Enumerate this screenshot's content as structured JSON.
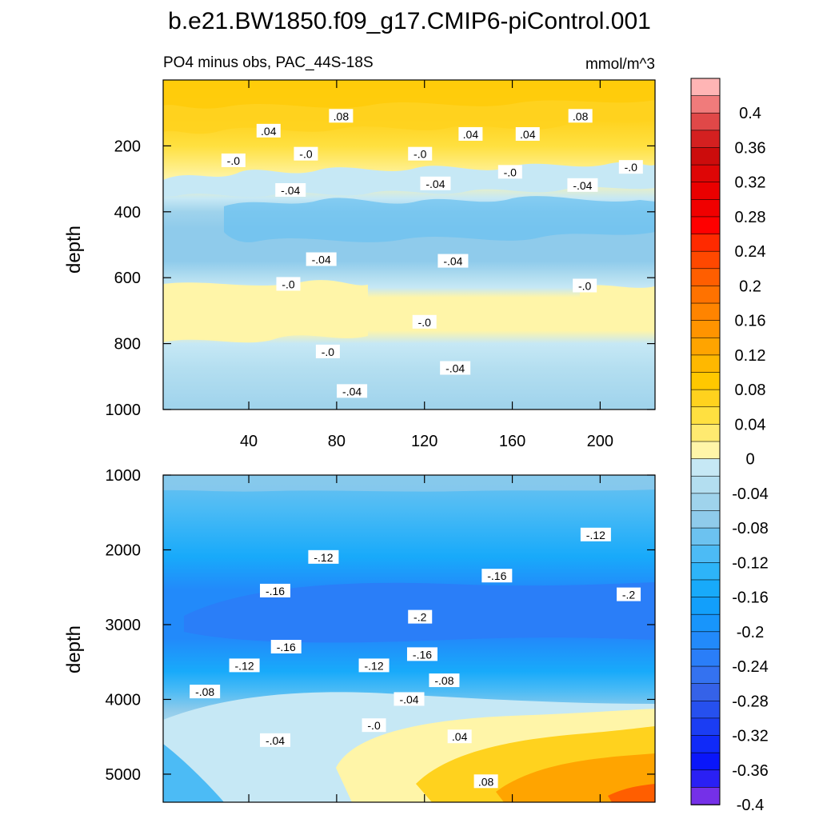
{
  "chart_data": {
    "type": "heatmap",
    "title": "b.e21.BW1850.f09_g17.CMIP6-piControl.001",
    "subtitle_left": "PO4 minus obs, PAC_44S-18S",
    "subtitle_right": "mmol/m^3",
    "x_range": [
      1,
      225
    ],
    "x_ticks": [
      "40",
      "80",
      "120",
      "160",
      "200"
    ],
    "x_tick_values": [
      40,
      80,
      120,
      160,
      200
    ],
    "panels": [
      {
        "name": "upper",
        "ylabel": "depth",
        "ylim": [
          0,
          1000
        ],
        "y_ticks": [
          "200",
          "400",
          "600",
          "800",
          "1000"
        ],
        "y_tick_values": [
          200,
          400,
          600,
          800,
          1000
        ],
        "contour_labels": [
          {
            "text": ".04",
            "x": 49,
            "y": 155
          },
          {
            "text": ".08",
            "x": 82,
            "y": 110
          },
          {
            "text": ".04",
            "x": 141,
            "y": 165
          },
          {
            "text": ".04",
            "x": 167,
            "y": 165
          },
          {
            "text": ".08",
            "x": 191,
            "y": 110
          },
          {
            "text": "-.0",
            "x": 33,
            "y": 245
          },
          {
            "text": "-.0",
            "x": 66,
            "y": 225
          },
          {
            "text": "-.0",
            "x": 118,
            "y": 225
          },
          {
            "text": "-.0",
            "x": 159,
            "y": 280
          },
          {
            "text": "-.0",
            "x": 214,
            "y": 265
          },
          {
            "text": "-.04",
            "x": 59,
            "y": 335
          },
          {
            "text": "-.04",
            "x": 125,
            "y": 315
          },
          {
            "text": "-.04",
            "x": 192,
            "y": 320
          },
          {
            "text": "-.04",
            "x": 73,
            "y": 545
          },
          {
            "text": "-.04",
            "x": 133,
            "y": 550
          },
          {
            "text": "-.0",
            "x": 58,
            "y": 620
          },
          {
            "text": "-.0",
            "x": 193,
            "y": 625
          },
          {
            "text": "-.0",
            "x": 120,
            "y": 735
          },
          {
            "text": "-.0",
            "x": 76,
            "y": 825
          },
          {
            "text": "-.04",
            "x": 134,
            "y": 875
          },
          {
            "text": "-.04",
            "x": 87,
            "y": 945
          }
        ]
      },
      {
        "name": "lower",
        "ylabel": "depth",
        "ylim": [
          1000,
          5375
        ],
        "y_ticks": [
          "1000",
          "2000",
          "3000",
          "4000",
          "5000"
        ],
        "y_tick_values": [
          1000,
          2000,
          3000,
          4000,
          5000
        ],
        "contour_labels": [
          {
            "text": "-.12",
            "x": 198,
            "y": 1800
          },
          {
            "text": "-.12",
            "x": 74,
            "y": 2100
          },
          {
            "text": "-.16",
            "x": 153,
            "y": 2350
          },
          {
            "text": "-.16",
            "x": 52,
            "y": 2550
          },
          {
            "text": "-.2",
            "x": 213,
            "y": 2600
          },
          {
            "text": "-.2",
            "x": 118,
            "y": 2900
          },
          {
            "text": "-.16",
            "x": 57,
            "y": 3300
          },
          {
            "text": "-.16",
            "x": 119,
            "y": 3400
          },
          {
            "text": "-.12",
            "x": 38,
            "y": 3550
          },
          {
            "text": "-.12",
            "x": 97,
            "y": 3550
          },
          {
            "text": "-.08",
            "x": 129,
            "y": 3750
          },
          {
            "text": "-.08",
            "x": 20,
            "y": 3900
          },
          {
            "text": "-.04",
            "x": 113,
            "y": 4000
          },
          {
            "text": "-.04",
            "x": 52,
            "y": 4550
          },
          {
            "text": "-.0",
            "x": 97,
            "y": 4350
          },
          {
            "text": ".04",
            "x": 136,
            "y": 4500
          },
          {
            "text": ".08",
            "x": 148,
            "y": 5100
          }
        ]
      }
    ],
    "colorbar": {
      "labels": [
        "0.4",
        "0.36",
        "0.32",
        "0.28",
        "0.24",
        "0.2",
        "0.16",
        "0.12",
        "0.08",
        "0.04",
        "0",
        "-0.04",
        "-0.08",
        "-0.12",
        "-0.16",
        "-0.2",
        "-0.24",
        "-0.28",
        "-0.32",
        "-0.36",
        "-0.4"
      ],
      "levels_top_to_bottom": [
        0.42,
        0.4,
        0.38,
        0.36,
        0.34,
        0.32,
        0.3,
        0.28,
        0.26,
        0.24,
        0.22,
        0.2,
        0.18,
        0.16,
        0.14,
        0.12,
        0.1,
        0.08,
        0.06,
        0.04,
        0.02,
        0.0,
        -0.02,
        -0.04,
        -0.06,
        -0.08,
        -0.1,
        -0.12,
        -0.14,
        -0.16,
        -0.18,
        -0.2,
        -0.22,
        -0.24,
        -0.26,
        -0.28,
        -0.3,
        -0.32,
        -0.34,
        -0.36,
        -0.38,
        -0.4
      ],
      "colors_top_to_bottom": [
        "#ffb5b5",
        "#f07b7b",
        "#e04848",
        "#d42020",
        "#cc0c0c",
        "#de0606",
        "#ea0000",
        "#f00000",
        "#ff0000",
        "#ff2a00",
        "#ff4800",
        "#ff5e00",
        "#ff7200",
        "#ff8400",
        "#ff9400",
        "#ffa400",
        "#ffb800",
        "#ffc800",
        "#ffd21e",
        "#ffe040",
        "#ffea70",
        "#fff5a8",
        "#c6e8f5",
        "#b3def0",
        "#9fd3ec",
        "#8fcbeb",
        "#6cc2f0",
        "#4cbbf5",
        "#2db4f8",
        "#18aafa",
        "#129ffb",
        "#1895fb",
        "#228afa",
        "#2a7ef8",
        "#3472f0",
        "#3562e8",
        "#2650ee",
        "#1b3df3",
        "#102af8",
        "#0a16fa",
        "#2a20f4",
        "#7530e8"
      ]
    }
  }
}
